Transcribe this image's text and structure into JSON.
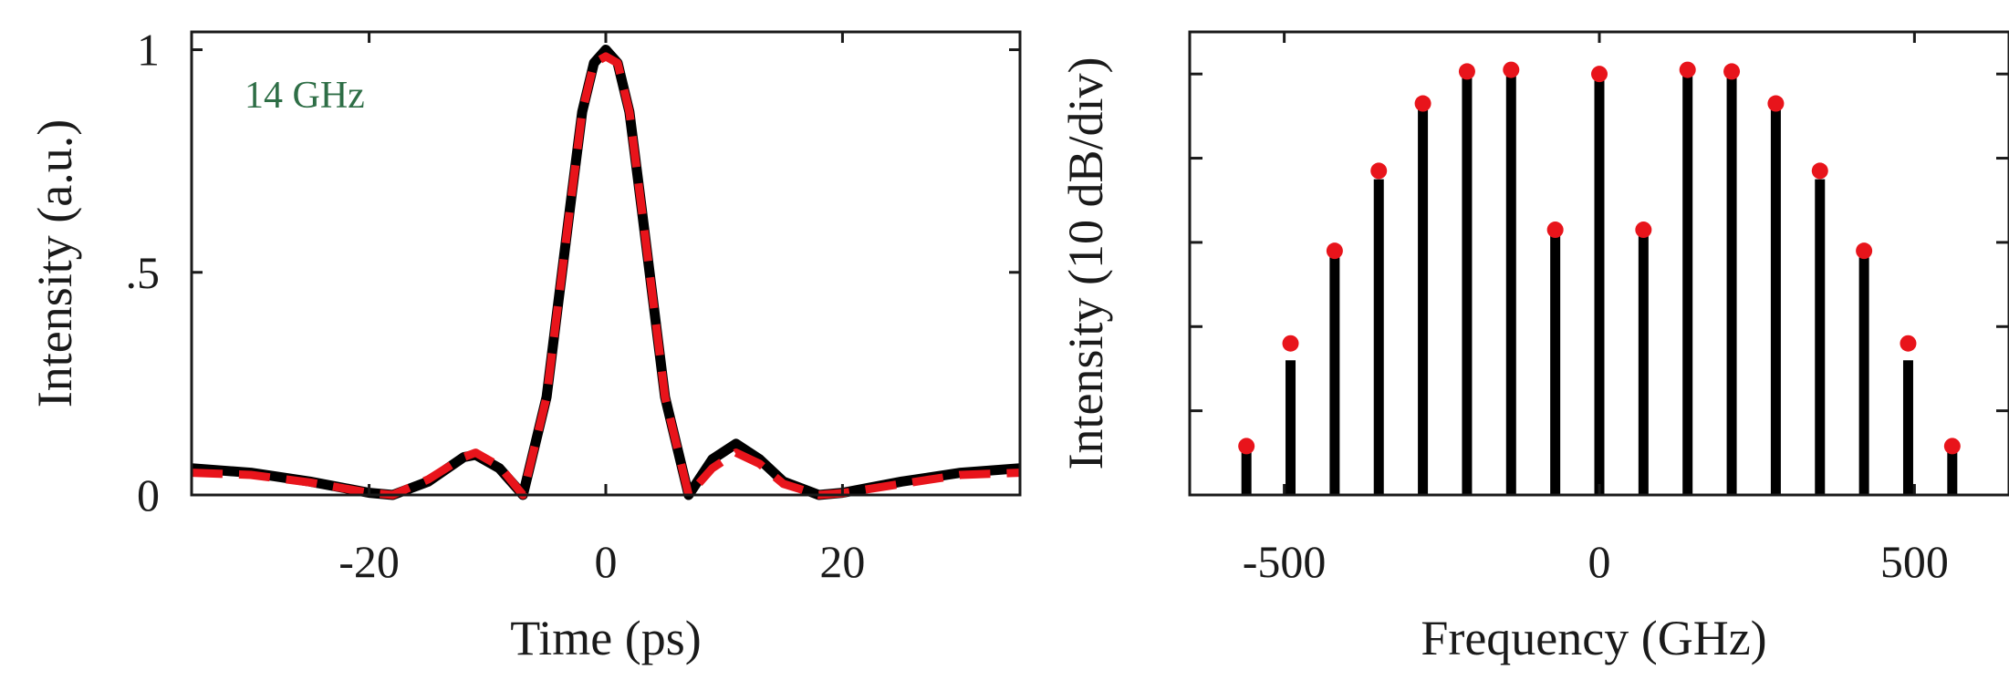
{
  "chart_data": [
    {
      "type": "line",
      "annotation": "14 GHz",
      "xlabel": "Time (ps)",
      "ylabel": "Intensity (a.u.)",
      "xlim": [
        -35,
        35
      ],
      "ylim": [
        0,
        1.04
      ],
      "xticks": [
        -20,
        0,
        20
      ],
      "xtick_labels": [
        "-20",
        "0",
        "20"
      ],
      "yticks": [
        0,
        0.5,
        1
      ],
      "ytick_labels": [
        "0",
        ".5",
        "1"
      ],
      "colors": {
        "solid": "#000000",
        "dashed": "#e8141b"
      },
      "series": [
        {
          "style": "solid",
          "x": [
            -35,
            -30,
            -25,
            -20,
            -18,
            -15,
            -12,
            -11,
            -9,
            -7,
            -5,
            -3,
            -2,
            -1,
            0,
            1,
            2,
            3,
            5,
            7,
            9,
            11,
            13,
            15,
            18,
            20,
            25,
            30,
            35
          ],
          "y": [
            0.06,
            0.05,
            0.03,
            0.005,
            0.0,
            0.03,
            0.085,
            0.09,
            0.06,
            0.0,
            0.22,
            0.65,
            0.86,
            0.97,
            1.0,
            0.97,
            0.86,
            0.65,
            0.22,
            0.0,
            0.08,
            0.115,
            0.08,
            0.03,
            0.0,
            0.005,
            0.03,
            0.05,
            0.06
          ]
        },
        {
          "style": "dashed",
          "x": [
            -35,
            -30,
            -25,
            -20,
            -18,
            -15,
            -12,
            -11,
            -9,
            -7,
            -5,
            -3,
            -2,
            -1,
            0,
            1,
            2,
            3,
            5,
            7,
            9,
            11,
            13,
            15,
            18,
            20,
            25,
            30,
            35
          ],
          "y": [
            0.05,
            0.045,
            0.028,
            0.005,
            0.0,
            0.035,
            0.085,
            0.095,
            0.065,
            0.0,
            0.22,
            0.65,
            0.86,
            0.97,
            0.985,
            0.97,
            0.86,
            0.65,
            0.22,
            0.0,
            0.06,
            0.095,
            0.07,
            0.025,
            0.0,
            0.004,
            0.025,
            0.045,
            0.05
          ]
        }
      ]
    },
    {
      "type": "bar",
      "xlabel": "Frequency (GHz)",
      "ylabel": "Intensity (10 dB/div)",
      "xlim": [
        -650,
        650
      ],
      "ylim": [
        0,
        55
      ],
      "ylim_note": "y in dB above the axis baseline; gridline ticks every 10 dB",
      "xticks": [
        -500,
        0,
        500
      ],
      "xtick_labels": [
        "-500",
        "0",
        "500"
      ],
      "yticks": [
        10,
        20,
        30,
        40,
        50
      ],
      "colors": {
        "bars": "#000000",
        "markers": "#e8141b"
      },
      "x": [
        -560,
        -490,
        -420,
        -350,
        -280,
        -210,
        -140,
        -70,
        0,
        70,
        140,
        210,
        280,
        350,
        420,
        490,
        560
      ],
      "bars": [
        5.5,
        16,
        28.5,
        37.5,
        46,
        50.5,
        50.5,
        31.5,
        49.5,
        31.5,
        50.5,
        50.5,
        46,
        37.5,
        28.5,
        16,
        5.5
      ],
      "markers": [
        5.8,
        18,
        29,
        38.5,
        46.5,
        50.3,
        50.5,
        31.5,
        50,
        31.5,
        50.5,
        50.3,
        46.5,
        38.5,
        29,
        18,
        5.8
      ]
    }
  ]
}
